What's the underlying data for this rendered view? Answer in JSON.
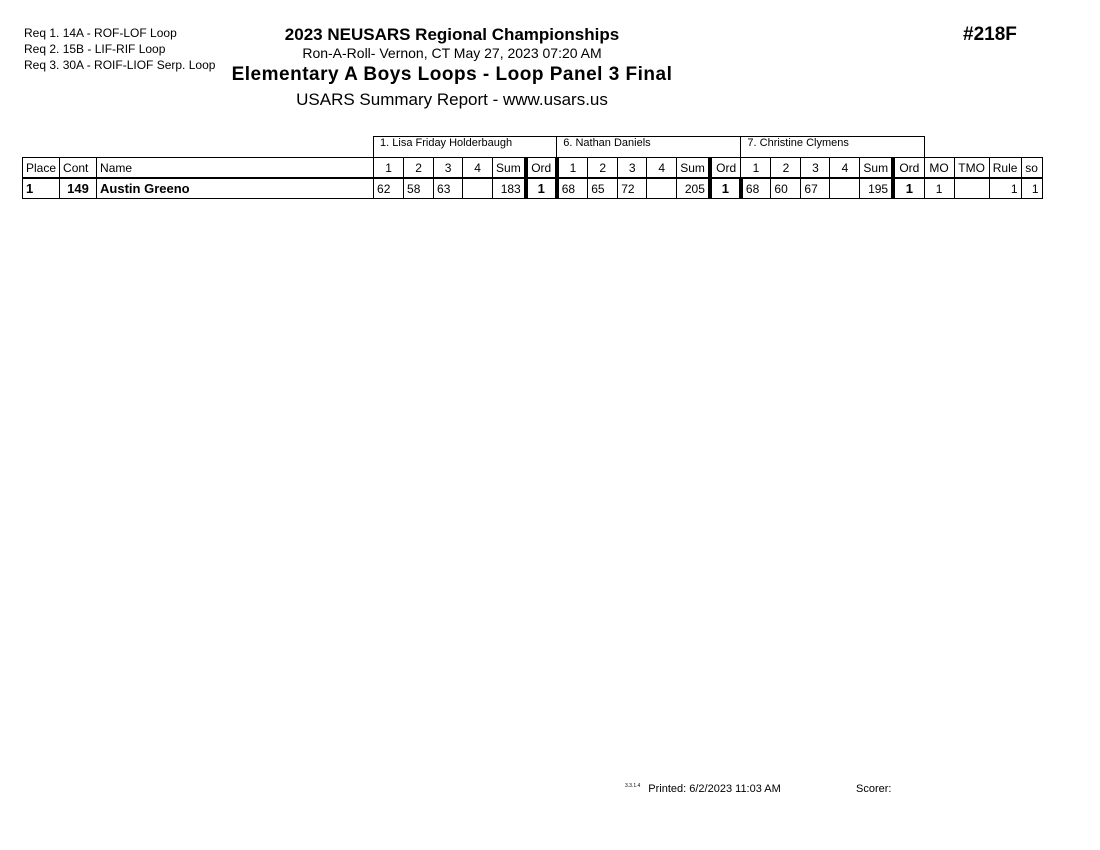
{
  "requirements": [
    "Req  1.  14A - ROF-LOF Loop",
    "Req  2.  15B - LIF-RIF Loop",
    "Req  3.  30A - ROIF-LIOF Serp. Loop"
  ],
  "header": {
    "event": "2023 NEUSARS Regional Championships",
    "location": "Ron-A-Roll- Vernon, CT  May 27, 2023  07:20 AM",
    "division": "Elementary A Boys Loops - Loop Panel 3 Final",
    "report": "USARS Summary Report - www.usars.us",
    "number": "#218F"
  },
  "table": {
    "judges": [
      "1.  Lisa Friday Holderbaugh",
      "6.  Nathan Daniels",
      "7.  Christine Clymens"
    ],
    "columns": {
      "place": "Place",
      "cont": "Cont",
      "name": "Name",
      "marks": [
        "1",
        "2",
        "3",
        "4",
        "Sum",
        "Ord"
      ],
      "extra": [
        "MO",
        "TMO",
        "Rule",
        "so"
      ]
    },
    "rows": [
      {
        "place": "1",
        "cont": "149",
        "name": "Austin Greeno",
        "judges": [
          {
            "marks": [
              "62",
              "58",
              "63",
              ""
            ],
            "sum": "183",
            "ord": "1"
          },
          {
            "marks": [
              "68",
              "65",
              "72",
              ""
            ],
            "sum": "205",
            "ord": "1"
          },
          {
            "marks": [
              "68",
              "60",
              "67",
              ""
            ],
            "sum": "195",
            "ord": "1"
          }
        ],
        "mo": "1",
        "tmo": "",
        "rule": "1",
        "so": "1"
      }
    ]
  },
  "footer": {
    "version": "3.3.1.4",
    "printed": "Printed:  6/2/2023  11:03 AM",
    "scorer": "Scorer:"
  }
}
